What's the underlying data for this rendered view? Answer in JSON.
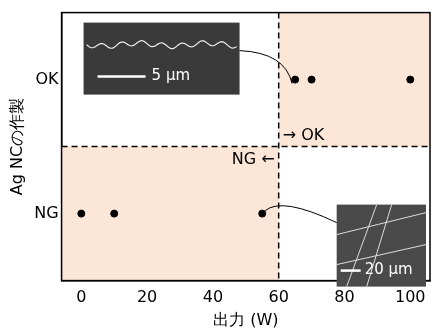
{
  "chart_data": {
    "type": "scatter",
    "x_label": "出力 (W)",
    "y_label": "Ag NCの作製",
    "y_categories": [
      "OK",
      "NG"
    ],
    "x": [
      0,
      10,
      55,
      65,
      70,
      100
    ],
    "values": [
      "NG",
      "NG",
      "NG",
      "OK",
      "OK",
      "OK"
    ],
    "color": "#000000",
    "marker": "circle",
    "xlim": [
      -6,
      106
    ],
    "xticks": [
      0,
      20,
      40,
      60,
      80,
      100
    ],
    "grid": false,
    "threshold": 60,
    "annotations": [
      "→ OK",
      "NG ←"
    ],
    "insets": [
      {
        "scale_bar": "5 μm"
      },
      {
        "scale_bar": "20 μm"
      }
    ]
  }
}
